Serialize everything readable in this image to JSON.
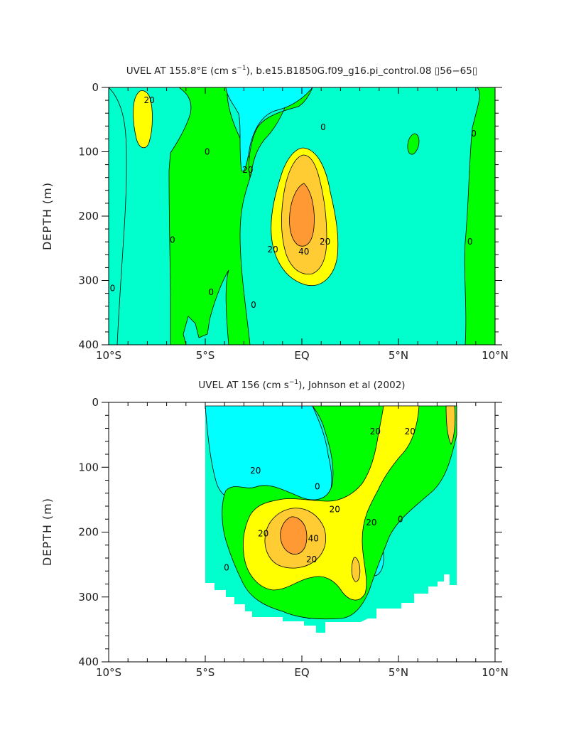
{
  "colors": {
    "level_neg": "#00ffff",
    "level_0": "#00ffcc",
    "level_10": "#00ff00",
    "level_20": "#ffff00",
    "level_30": "#ffcc33",
    "level_40": "#ff9933",
    "contour_line": "#000000"
  },
  "chart_data": [
    {
      "type": "contour",
      "title": "UVEL AT 155.8°E (cm s^-1), b.e15.B1850G.f09_g16.pi_control.08 [56-65]",
      "title_parts": {
        "pre": "UVEL AT 155.8°E (cm s",
        "sup": "−1",
        "post": "), b.e15.B1850G.f09_g16.pi_control.08 ▯56−65▯"
      },
      "xlabel": "",
      "ylabel": "DEPTH (m)",
      "xlim": [
        -10,
        10
      ],
      "ylim": [
        400,
        0
      ],
      "x_tick_values": [
        -10,
        -5,
        0,
        5,
        10
      ],
      "x_tick_labels": [
        "10°S",
        "5°S",
        "EQ",
        "5°N",
        "10°N"
      ],
      "y_tick_values": [
        0,
        100,
        200,
        300,
        400
      ],
      "y_tick_labels": [
        "0",
        "100",
        "200",
        "300",
        "400"
      ],
      "units": "cm s^-1",
      "contour_levels": [
        -10,
        0,
        10,
        20,
        30,
        40,
        50
      ],
      "contour_labels": [
        {
          "text": "20",
          "lat": -7.9,
          "depth": 20
        },
        {
          "text": "0",
          "lat": -4.9,
          "depth": 100
        },
        {
          "text": "20",
          "lat": -2.8,
          "depth": 128
        },
        {
          "text": "0",
          "lat": 1.1,
          "depth": 62
        },
        {
          "text": "0",
          "lat": -6.7,
          "depth": 237
        },
        {
          "text": "0",
          "lat": -9.8,
          "depth": 312
        },
        {
          "text": "0",
          "lat": -4.7,
          "depth": 318
        },
        {
          "text": "0",
          "lat": -2.5,
          "depth": 338
        },
        {
          "text": "20",
          "lat": -1.5,
          "depth": 252
        },
        {
          "text": "40",
          "lat": 0.1,
          "depth": 255
        },
        {
          "text": "20",
          "lat": 1.2,
          "depth": 240
        },
        {
          "text": "0",
          "lat": 8.9,
          "depth": 72
        },
        {
          "text": "0",
          "lat": 8.7,
          "depth": 240
        }
      ]
    },
    {
      "type": "contour",
      "title": "UVEL AT 156 (cm s^-1), Johnson et al (2002)",
      "title_parts": {
        "pre": "UVEL AT 156 (cm s",
        "sup": "−1",
        "post": "), Johnson et al (2002)"
      },
      "xlabel": "",
      "ylabel": "DEPTH (m)",
      "xlim": [
        -10,
        10
      ],
      "ylim": [
        400,
        0
      ],
      "x_tick_values": [
        -10,
        -5,
        0,
        5,
        10
      ],
      "x_tick_labels": [
        "10°S",
        "5°S",
        "EQ",
        "5°N",
        "10°N"
      ],
      "y_tick_values": [
        0,
        100,
        200,
        300,
        400
      ],
      "y_tick_labels": [
        "0",
        "100",
        "200",
        "300",
        "400"
      ],
      "units": "cm s^-1",
      "contour_levels": [
        -10,
        0,
        10,
        20,
        30,
        40,
        50
      ],
      "data_extent": {
        "lat": [
          -5,
          8
        ],
        "max_depth": 355
      },
      "contour_labels": [
        {
          "text": "20",
          "lat": -2.4,
          "depth": 105
        },
        {
          "text": "0",
          "lat": 0.8,
          "depth": 130
        },
        {
          "text": "20",
          "lat": 3.8,
          "depth": 45
        },
        {
          "text": "20",
          "lat": 5.6,
          "depth": 45
        },
        {
          "text": "20",
          "lat": 1.7,
          "depth": 165
        },
        {
          "text": "20",
          "lat": -2.0,
          "depth": 202
        },
        {
          "text": "40",
          "lat": 0.6,
          "depth": 210
        },
        {
          "text": "20",
          "lat": 3.6,
          "depth": 185
        },
        {
          "text": "0",
          "lat": 5.1,
          "depth": 180
        },
        {
          "text": "20",
          "lat": 0.5,
          "depth": 242
        },
        {
          "text": "0",
          "lat": -3.9,
          "depth": 255
        }
      ]
    }
  ]
}
